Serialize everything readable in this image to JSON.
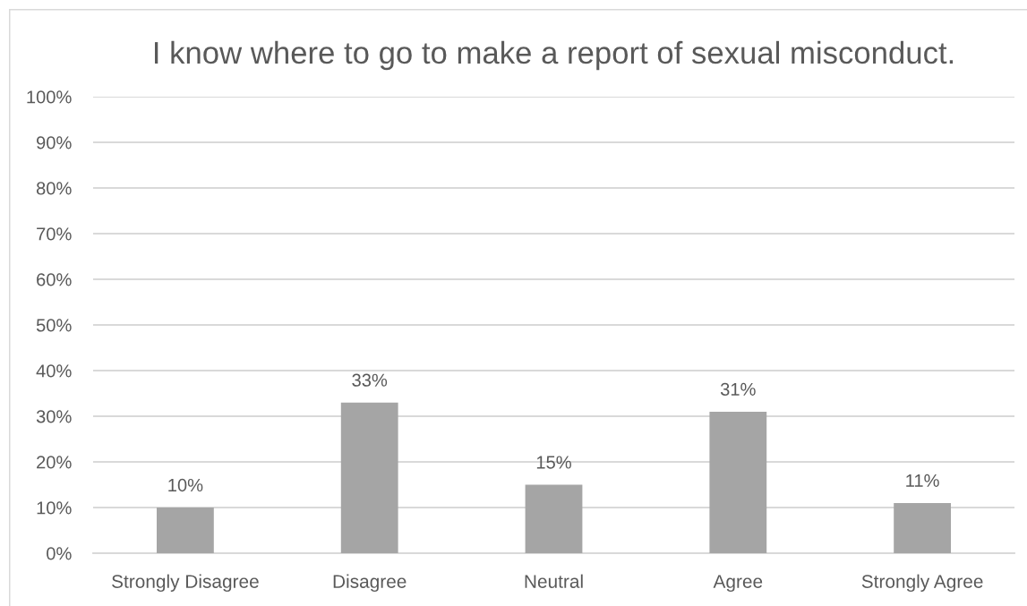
{
  "chart_data": {
    "type": "bar",
    "title": "I know where to go to make a report of sexual misconduct.",
    "categories": [
      "Strongly Disagree",
      "Disagree",
      "Neutral",
      "Agree",
      "Strongly Agree"
    ],
    "values": [
      10,
      33,
      15,
      31,
      11
    ],
    "color": "#a5a5a5",
    "value_labels": [
      "10%",
      "33%",
      "15%",
      "31%",
      "11%"
    ],
    "ylim": [
      0,
      100
    ],
    "yticks": [
      {
        "value": 0,
        "label": "0%"
      },
      {
        "value": 10,
        "label": "10%"
      },
      {
        "value": 20,
        "label": "20%"
      },
      {
        "value": 30,
        "label": "30%"
      },
      {
        "value": 40,
        "label": "40%"
      },
      {
        "value": 50,
        "label": "50%"
      },
      {
        "value": 60,
        "label": "60%"
      },
      {
        "value": 70,
        "label": "70%"
      },
      {
        "value": 80,
        "label": "80%"
      },
      {
        "value": 90,
        "label": "90%"
      },
      {
        "value": 100,
        "label": "100%"
      }
    ],
    "grid": "y"
  }
}
